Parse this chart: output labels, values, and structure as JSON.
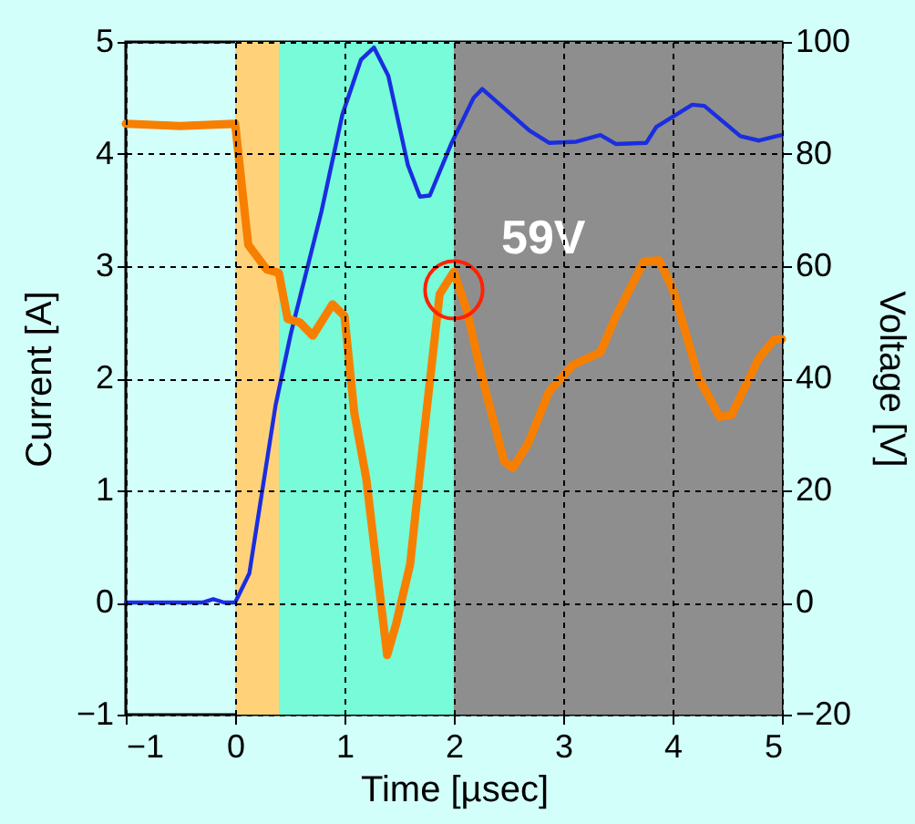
{
  "chart_data": {
    "type": "line",
    "xlabel": "Time [µsec]",
    "ylabel": "Current [A]",
    "y2label": "Voltage [V]",
    "xlim": [
      -1,
      5
    ],
    "xticks": [
      -1,
      0,
      1,
      2,
      3,
      4,
      5
    ],
    "ylim": [
      -1,
      5
    ],
    "yticks": [
      -1,
      0,
      1,
      2,
      3,
      4,
      5
    ],
    "y2lim": [
      -20,
      100
    ],
    "y2ticks": [
      -20,
      0,
      20,
      40,
      60,
      80,
      100
    ],
    "grid": true,
    "bands": [
      {
        "axis": "x",
        "from": 0,
        "to": 0.4,
        "color": "#ffd27a"
      },
      {
        "axis": "x",
        "from": 0.4,
        "to": 2,
        "color": "#77fbd8"
      },
      {
        "axis": "x",
        "from": 2,
        "to": 5,
        "color": "#8e8e8e"
      }
    ],
    "series": [
      {
        "color": "#1a2ee0",
        "x": [
          -1,
          -0.5,
          -0.3,
          -0.2,
          -0.1,
          0,
          0.13,
          0.37,
          0.51,
          0.79,
          0.98,
          1.15,
          1.27,
          1.4,
          1.58,
          1.69,
          1.78,
          1.98,
          2.18,
          2.26,
          2.69,
          2.87,
          3.12,
          3.34,
          3.48,
          3.76,
          3.85,
          4.18,
          4.29,
          4.62,
          4.79,
          4.95,
          5
        ],
        "values": [
          0,
          0,
          0,
          0.03,
          0,
          0,
          0.26,
          1.76,
          2.4,
          3.49,
          4.35,
          4.84,
          4.95,
          4.7,
          3.9,
          3.62,
          3.63,
          4.1,
          4.5,
          4.58,
          4.21,
          4.1,
          4.11,
          4.17,
          4.09,
          4.1,
          4.24,
          4.44,
          4.43,
          4.16,
          4.12,
          4.16,
          4.17
        ]
      },
      {
        "color": "#f77f00",
        "axis": "y2",
        "x": [
          -1,
          -0.5,
          0,
          0.12,
          0.29,
          0.4,
          0.48,
          0.59,
          0.71,
          0.89,
          1,
          1.09,
          1.2,
          1.39,
          1.47,
          1.6,
          1.73,
          1.87,
          2,
          2.12,
          2.26,
          2.46,
          2.54,
          2.68,
          2.87,
          3.09,
          3.34,
          3.48,
          3.74,
          3.88,
          4.01,
          4.24,
          4.43,
          4.54,
          4.79,
          4.93,
          5
        ],
        "values": [
          85.4,
          85,
          85.4,
          63.8,
          59.4,
          58.8,
          50.6,
          50,
          47.6,
          53.2,
          51.1,
          33.8,
          22,
          -9.4,
          -4,
          6.8,
          30.6,
          55,
          59,
          52,
          40,
          25.2,
          24,
          28.4,
          37.6,
          42.4,
          44.6,
          51,
          60.9,
          61,
          55.5,
          40,
          33.1,
          33.5,
          43.6,
          46.9,
          47
        ]
      }
    ],
    "annotations": [
      "59V"
    ]
  }
}
